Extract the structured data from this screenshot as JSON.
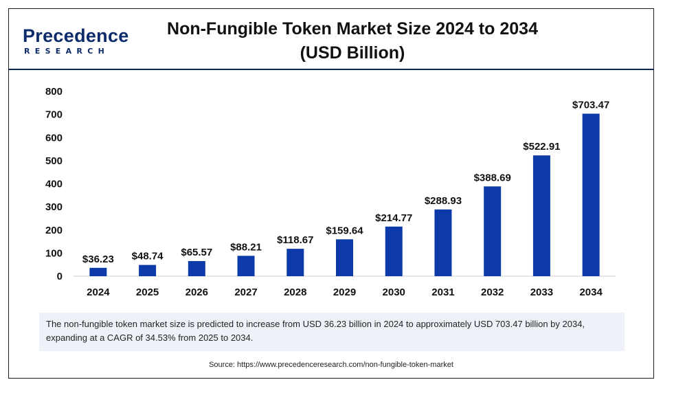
{
  "logo": {
    "main": "Precedence",
    "sub": "RESEARCH"
  },
  "title_line1": "Non-Fungible Token Market Size 2024 to 2034",
  "title_line2": "(USD Billion)",
  "chart_data": {
    "type": "bar",
    "categories": [
      "2024",
      "2025",
      "2026",
      "2027",
      "2028",
      "2029",
      "2030",
      "2031",
      "2032",
      "2033",
      "2034"
    ],
    "values": [
      36.23,
      48.74,
      65.57,
      88.21,
      118.67,
      159.64,
      214.77,
      288.93,
      388.69,
      522.91,
      703.47
    ],
    "value_labels": [
      "$36.23",
      "$48.74",
      "$65.57",
      "$88.21",
      "$118.67",
      "$159.64",
      "$214.77",
      "$288.93",
      "$388.69",
      "$522.91",
      "$703.47"
    ],
    "yticks": [
      0,
      100,
      200,
      300,
      400,
      500,
      600,
      700,
      800
    ],
    "ylim": [
      0,
      800
    ],
    "grid": false,
    "bar_color": "#0d3aa9"
  },
  "note": "The non-fungible token market size is predicted to increase from USD 36.23 billion in 2024 to approximately USD 703.47 billion by 2034, expanding at a CAGR of 34.53% from 2025 to 2034.",
  "source": "Source: https://www.precedenceresearch.com/non-fungible-token-market"
}
